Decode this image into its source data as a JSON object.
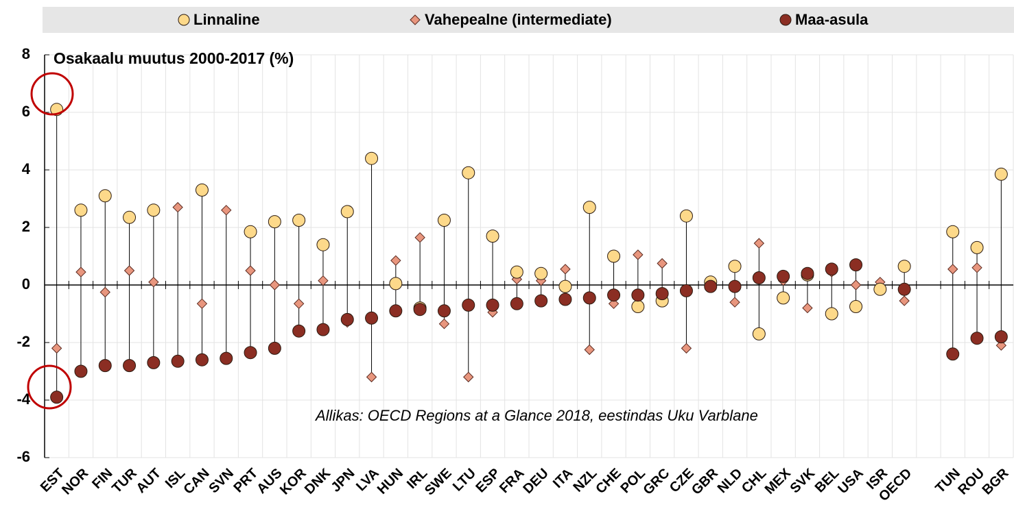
{
  "chart_data": {
    "type": "dot-range",
    "title": "Osakaalu muutus 2000-2017 (%)",
    "annotation": "Allikas: OECD Regions at a Glance 2018, eestindas Uku Varblane",
    "categories": [
      "EST",
      "NOR",
      "FIN",
      "TUR",
      "AUT",
      "ISL",
      "CAN",
      "SVN",
      "PRT",
      "AUS",
      "KOR",
      "DNK",
      "JPN",
      "LVA",
      "HUN",
      "IRL",
      "SWE",
      "LTU",
      "ESP",
      "FRA",
      "DEU",
      "ITA",
      "NZL",
      "CHE",
      "POL",
      "GRC",
      "CZE",
      "GBR",
      "NLD",
      "CHL",
      "MEX",
      "SVK",
      "BEL",
      "USA",
      "ISR",
      "OECD",
      null,
      "TUN",
      "ROU",
      "BGR"
    ],
    "series": [
      {
        "name": "Linnaline",
        "color": "#fdd98a",
        "marker": "circle",
        "values": [
          6.1,
          2.6,
          3.1,
          2.35,
          2.6,
          null,
          3.3,
          null,
          1.85,
          2.2,
          2.25,
          1.4,
          2.55,
          4.4,
          0.05,
          -0.8,
          2.25,
          3.9,
          1.7,
          0.45,
          0.4,
          -0.05,
          2.7,
          1.0,
          -0.75,
          -0.55,
          2.4,
          0.1,
          0.65,
          -1.7,
          -0.45,
          0.35,
          -1.0,
          -0.75,
          -0.15,
          0.65,
          null,
          1.85,
          1.3,
          3.85
        ]
      },
      {
        "name": "Vahepealne (intermediate)",
        "color": "#e8967e",
        "marker": "diamond",
        "values": [
          -2.2,
          0.45,
          -0.25,
          0.5,
          0.1,
          2.7,
          -0.65,
          2.6,
          0.5,
          0.0,
          -0.65,
          0.15,
          -1.3,
          -3.2,
          0.85,
          1.65,
          -1.35,
          -3.2,
          -0.95,
          0.2,
          0.15,
          0.55,
          -2.25,
          -0.65,
          1.05,
          0.75,
          -2.2,
          -0.05,
          -0.6,
          1.45,
          0.15,
          -0.8,
          0.45,
          0.0,
          0.1,
          -0.55,
          null,
          0.55,
          0.6,
          -2.1
        ]
      },
      {
        "name": "Maa-asula",
        "color": "#8b2e23",
        "marker": "circle",
        "values": [
          -3.9,
          -3.0,
          -2.8,
          -2.8,
          -2.7,
          -2.65,
          -2.6,
          -2.55,
          -2.35,
          -2.2,
          -1.6,
          -1.55,
          -1.2,
          -1.15,
          -0.9,
          -0.85,
          -0.9,
          -0.7,
          -0.7,
          -0.65,
          -0.55,
          -0.5,
          -0.45,
          -0.35,
          -0.35,
          -0.3,
          -0.2,
          -0.05,
          -0.05,
          0.25,
          0.3,
          0.4,
          0.55,
          0.7,
          null,
          -0.15,
          null,
          -2.4,
          -1.85,
          -1.8
        ]
      }
    ],
    "ylim": [
      -6,
      8
    ],
    "yticks": [
      -6,
      -4,
      -2,
      0,
      2,
      4,
      6,
      8
    ],
    "grid": true
  }
}
